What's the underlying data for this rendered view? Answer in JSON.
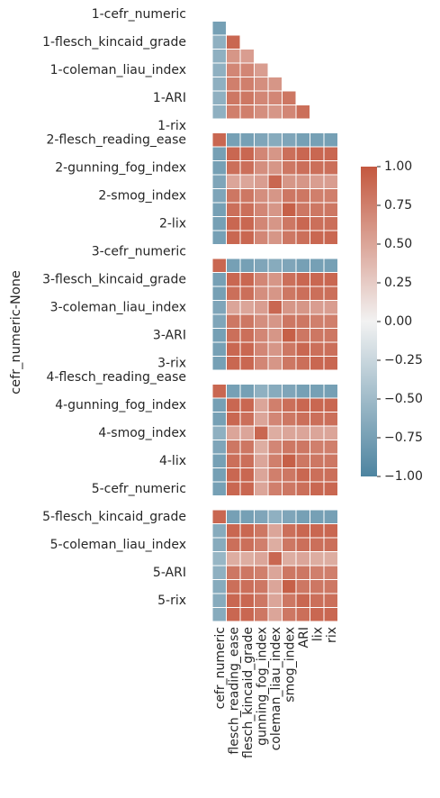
{
  "chart_data": {
    "type": "heatmap",
    "title": "",
    "ylabel": "cefr_numeric-None",
    "xlabel": "",
    "columns": [
      "cefr_numeric",
      "flesch_reading_ease",
      "flesch_kincaid_grade",
      "gunning_fog_index",
      "coleman_liau_index",
      "smog_index",
      "ARI",
      "lix",
      "rix"
    ],
    "row_labels": [
      "1-cefr_numeric",
      "",
      "1-flesch_kincaid_grade",
      "",
      "1-coleman_liau_index",
      "",
      "1-ARI",
      "",
      "1-rix",
      "2-flesch_reading_ease",
      "",
      "2-gunning_fog_index",
      "",
      "2-smog_index",
      "",
      "2-lix",
      "",
      "3-cefr_numeric",
      "",
      "3-flesch_kincaid_grade",
      "",
      "3-coleman_liau_index",
      "",
      "3-ARI",
      "",
      "3-rix",
      "4-flesch_reading_ease",
      "",
      "4-gunning_fog_index",
      "",
      "4-smog_index",
      "",
      "4-lix",
      "",
      "5-cefr_numeric",
      "",
      "5-flesch_kincaid_grade",
      "",
      "5-coleman_liau_index",
      "",
      "5-ARI",
      "",
      "5-rix"
    ],
    "values": [
      [
        null,
        null,
        null,
        null,
        null,
        null,
        null,
        null,
        null
      ],
      [
        -0.75,
        null,
        null,
        null,
        null,
        null,
        null,
        null,
        null
      ],
      [
        -0.6,
        0.9,
        null,
        null,
        null,
        null,
        null,
        null,
        null
      ],
      [
        -0.6,
        0.6,
        0.55,
        null,
        null,
        null,
        null,
        null,
        null
      ],
      [
        -0.6,
        0.7,
        0.7,
        0.55,
        null,
        null,
        null,
        null,
        null
      ],
      [
        -0.6,
        0.75,
        0.75,
        0.65,
        0.6,
        null,
        null,
        null,
        null
      ],
      [
        -0.6,
        0.8,
        0.8,
        0.7,
        0.7,
        0.8,
        null,
        null,
        null
      ],
      [
        -0.6,
        0.75,
        0.75,
        0.65,
        0.6,
        0.7,
        0.85,
        null,
        null
      ],
      [
        null,
        null,
        null,
        null,
        null,
        null,
        null,
        null,
        null
      ],
      [
        0.9,
        -0.75,
        -0.75,
        -0.7,
        -0.65,
        -0.7,
        -0.75,
        -0.75,
        -0.75
      ],
      [
        -0.75,
        0.9,
        0.9,
        0.7,
        0.6,
        0.85,
        0.9,
        0.9,
        0.9
      ],
      [
        -0.75,
        0.85,
        0.85,
        0.65,
        0.6,
        0.8,
        0.85,
        0.85,
        0.85
      ],
      [
        -0.7,
        0.5,
        0.5,
        0.55,
        0.9,
        0.6,
        0.6,
        0.55,
        0.55
      ],
      [
        -0.7,
        0.8,
        0.8,
        0.65,
        0.6,
        0.8,
        0.8,
        0.75,
        0.75
      ],
      [
        -0.75,
        0.85,
        0.85,
        0.7,
        0.6,
        0.95,
        0.8,
        0.8,
        0.8
      ],
      [
        -0.75,
        0.9,
        0.9,
        0.7,
        0.6,
        0.8,
        0.9,
        0.85,
        0.85
      ],
      [
        -0.75,
        0.9,
        0.9,
        0.7,
        0.6,
        0.8,
        0.85,
        0.9,
        0.9
      ],
      [
        null,
        null,
        null,
        null,
        null,
        null,
        null,
        null,
        null
      ],
      [
        0.9,
        -0.75,
        -0.75,
        -0.7,
        -0.65,
        -0.7,
        -0.75,
        -0.75,
        -0.75
      ],
      [
        -0.75,
        0.9,
        0.9,
        0.7,
        0.6,
        0.85,
        0.9,
        0.9,
        0.9
      ],
      [
        -0.75,
        0.85,
        0.85,
        0.65,
        0.6,
        0.8,
        0.85,
        0.85,
        0.85
      ],
      [
        -0.7,
        0.5,
        0.5,
        0.55,
        0.9,
        0.6,
        0.6,
        0.55,
        0.55
      ],
      [
        -0.7,
        0.8,
        0.8,
        0.65,
        0.6,
        0.8,
        0.8,
        0.75,
        0.75
      ],
      [
        -0.75,
        0.85,
        0.85,
        0.7,
        0.6,
        0.95,
        0.8,
        0.8,
        0.8
      ],
      [
        -0.75,
        0.9,
        0.9,
        0.7,
        0.6,
        0.8,
        0.9,
        0.85,
        0.85
      ],
      [
        -0.75,
        0.9,
        0.9,
        0.7,
        0.6,
        0.8,
        0.85,
        0.9,
        0.9
      ],
      [
        null,
        null,
        null,
        null,
        null,
        null,
        null,
        null,
        null
      ],
      [
        0.9,
        -0.75,
        -0.75,
        -0.6,
        -0.65,
        -0.7,
        -0.75,
        -0.75,
        -0.75
      ],
      [
        -0.75,
        0.9,
        0.9,
        0.5,
        0.75,
        0.85,
        0.9,
        0.9,
        0.9
      ],
      [
        -0.75,
        0.9,
        0.85,
        0.5,
        0.7,
        0.8,
        0.85,
        0.85,
        0.85
      ],
      [
        -0.6,
        0.5,
        0.5,
        0.9,
        0.45,
        0.5,
        0.5,
        0.5,
        0.5
      ],
      [
        -0.7,
        0.8,
        0.8,
        0.45,
        0.7,
        0.8,
        0.8,
        0.75,
        0.75
      ],
      [
        -0.75,
        0.85,
        0.85,
        0.5,
        0.75,
        0.95,
        0.8,
        0.8,
        0.8
      ],
      [
        -0.75,
        0.9,
        0.9,
        0.5,
        0.75,
        0.8,
        0.9,
        0.85,
        0.85
      ],
      [
        -0.75,
        0.9,
        0.9,
        0.5,
        0.75,
        0.8,
        0.85,
        0.9,
        0.9
      ],
      [
        null,
        null,
        null,
        null,
        null,
        null,
        null,
        null,
        null
      ],
      [
        0.9,
        -0.75,
        -0.75,
        -0.7,
        -0.6,
        -0.7,
        -0.75,
        -0.75,
        -0.75
      ],
      [
        -0.65,
        0.9,
        0.9,
        0.8,
        0.5,
        0.85,
        0.9,
        0.9,
        0.9
      ],
      [
        -0.65,
        0.85,
        0.85,
        0.75,
        0.45,
        0.8,
        0.85,
        0.85,
        0.85
      ],
      [
        -0.55,
        0.45,
        0.45,
        0.5,
        0.9,
        0.45,
        0.5,
        0.45,
        0.45
      ],
      [
        -0.6,
        0.8,
        0.8,
        0.75,
        0.5,
        0.8,
        0.8,
        0.75,
        0.75
      ],
      [
        -0.65,
        0.85,
        0.85,
        0.8,
        0.5,
        0.95,
        0.8,
        0.8,
        0.8
      ],
      [
        -0.65,
        0.9,
        0.9,
        0.8,
        0.5,
        0.8,
        0.9,
        0.85,
        0.85
      ],
      [
        -0.65,
        0.9,
        0.9,
        0.8,
        0.5,
        0.8,
        0.85,
        0.9,
        0.9
      ]
    ],
    "colorbar": {
      "range": [
        -1,
        1
      ],
      "ticks": [
        "1.00",
        "0.75",
        "0.50",
        "0.25",
        "0.00",
        "−0.25",
        "−0.50",
        "−0.75",
        "−1.00"
      ],
      "low_color": "#4d84a0",
      "mid_color": "#f2f2f2",
      "high_color": "#c4583f"
    }
  }
}
